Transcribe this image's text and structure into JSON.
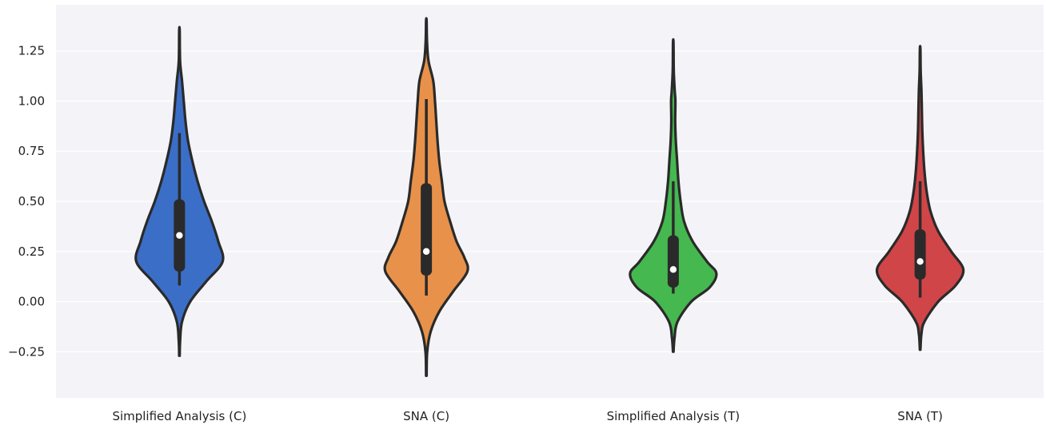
{
  "chart_data": {
    "type": "violin",
    "title": "",
    "xlabel": "",
    "ylabel": "",
    "ylim": [
      -0.48,
      1.48
    ],
    "yticks": [
      -0.25,
      0.0,
      0.25,
      0.5,
      0.75,
      1.0,
      1.25
    ],
    "ytick_labels": [
      "−0.25",
      "0.00",
      "0.25",
      "0.50",
      "0.75",
      "1.00",
      "1.25"
    ],
    "grid": true,
    "background": "#f4f4f8",
    "categories": [
      "Simplified Analysis (C)",
      "SNA (C)",
      "Simplified Analysis (T)",
      "SNA (T)"
    ],
    "series": [
      {
        "category": "Simplified Analysis (C)",
        "color": "#3a6ec7",
        "min": -0.27,
        "max": 1.35,
        "q1": 0.15,
        "median": 0.33,
        "q3": 0.51,
        "whisker_low": 0.08,
        "whisker_high": 0.84,
        "profile": [
          [
            -0.27,
            0.006
          ],
          [
            -0.2,
            0.015
          ],
          [
            -0.1,
            0.06
          ],
          [
            0.0,
            0.25
          ],
          [
            0.1,
            0.62
          ],
          [
            0.2,
            1.0
          ],
          [
            0.3,
            0.9
          ],
          [
            0.4,
            0.75
          ],
          [
            0.5,
            0.57
          ],
          [
            0.6,
            0.42
          ],
          [
            0.7,
            0.3
          ],
          [
            0.8,
            0.2
          ],
          [
            0.9,
            0.14
          ],
          [
            1.0,
            0.1
          ],
          [
            1.1,
            0.06
          ],
          [
            1.2,
            0.015
          ],
          [
            1.35,
            0.006
          ]
        ]
      },
      {
        "category": "SNA (C)",
        "color": "#e8914a",
        "min": -0.37,
        "max": 1.4,
        "q1": 0.13,
        "median": 0.25,
        "q3": 0.59,
        "whisker_low": 0.03,
        "whisker_high": 1.01,
        "profile": [
          [
            -0.37,
            0.006
          ],
          [
            -0.25,
            0.02
          ],
          [
            -0.15,
            0.1
          ],
          [
            -0.05,
            0.3
          ],
          [
            0.05,
            0.62
          ],
          [
            0.15,
            0.95
          ],
          [
            0.22,
            0.88
          ],
          [
            0.3,
            0.7
          ],
          [
            0.4,
            0.55
          ],
          [
            0.5,
            0.42
          ],
          [
            0.6,
            0.36
          ],
          [
            0.7,
            0.3
          ],
          [
            0.8,
            0.26
          ],
          [
            0.9,
            0.23
          ],
          [
            1.0,
            0.2
          ],
          [
            1.1,
            0.16
          ],
          [
            1.2,
            0.05
          ],
          [
            1.3,
            0.015
          ],
          [
            1.4,
            0.006
          ]
        ]
      },
      {
        "category": "Simplified Analysis (T)",
        "color": "#45b950",
        "min": -0.25,
        "max": 1.29,
        "q1": 0.07,
        "median": 0.16,
        "q3": 0.33,
        "whisker_low": 0.04,
        "whisker_high": 0.6,
        "profile": [
          [
            -0.25,
            0.006
          ],
          [
            -0.18,
            0.03
          ],
          [
            -0.1,
            0.1
          ],
          [
            0.0,
            0.42
          ],
          [
            0.07,
            0.84
          ],
          [
            0.14,
            1.0
          ],
          [
            0.2,
            0.78
          ],
          [
            0.3,
            0.45
          ],
          [
            0.4,
            0.25
          ],
          [
            0.5,
            0.17
          ],
          [
            0.6,
            0.12
          ],
          [
            0.7,
            0.09
          ],
          [
            0.8,
            0.06
          ],
          [
            0.9,
            0.045
          ],
          [
            1.0,
            0.05
          ],
          [
            1.05,
            0.035
          ],
          [
            1.15,
            0.012
          ],
          [
            1.29,
            0.006
          ]
        ]
      },
      {
        "category": "SNA (T)",
        "color": "#d04548",
        "min": -0.24,
        "max": 1.26,
        "q1": 0.11,
        "median": 0.2,
        "q3": 0.36,
        "whisker_low": 0.02,
        "whisker_high": 0.6,
        "profile": [
          [
            -0.24,
            0.006
          ],
          [
            -0.16,
            0.03
          ],
          [
            -0.1,
            0.1
          ],
          [
            0.0,
            0.42
          ],
          [
            0.08,
            0.82
          ],
          [
            0.16,
            1.0
          ],
          [
            0.25,
            0.72
          ],
          [
            0.35,
            0.42
          ],
          [
            0.45,
            0.24
          ],
          [
            0.55,
            0.15
          ],
          [
            0.65,
            0.1
          ],
          [
            0.75,
            0.07
          ],
          [
            0.85,
            0.05
          ],
          [
            0.95,
            0.04
          ],
          [
            1.05,
            0.03
          ],
          [
            1.15,
            0.012
          ],
          [
            1.26,
            0.006
          ]
        ]
      }
    ]
  }
}
